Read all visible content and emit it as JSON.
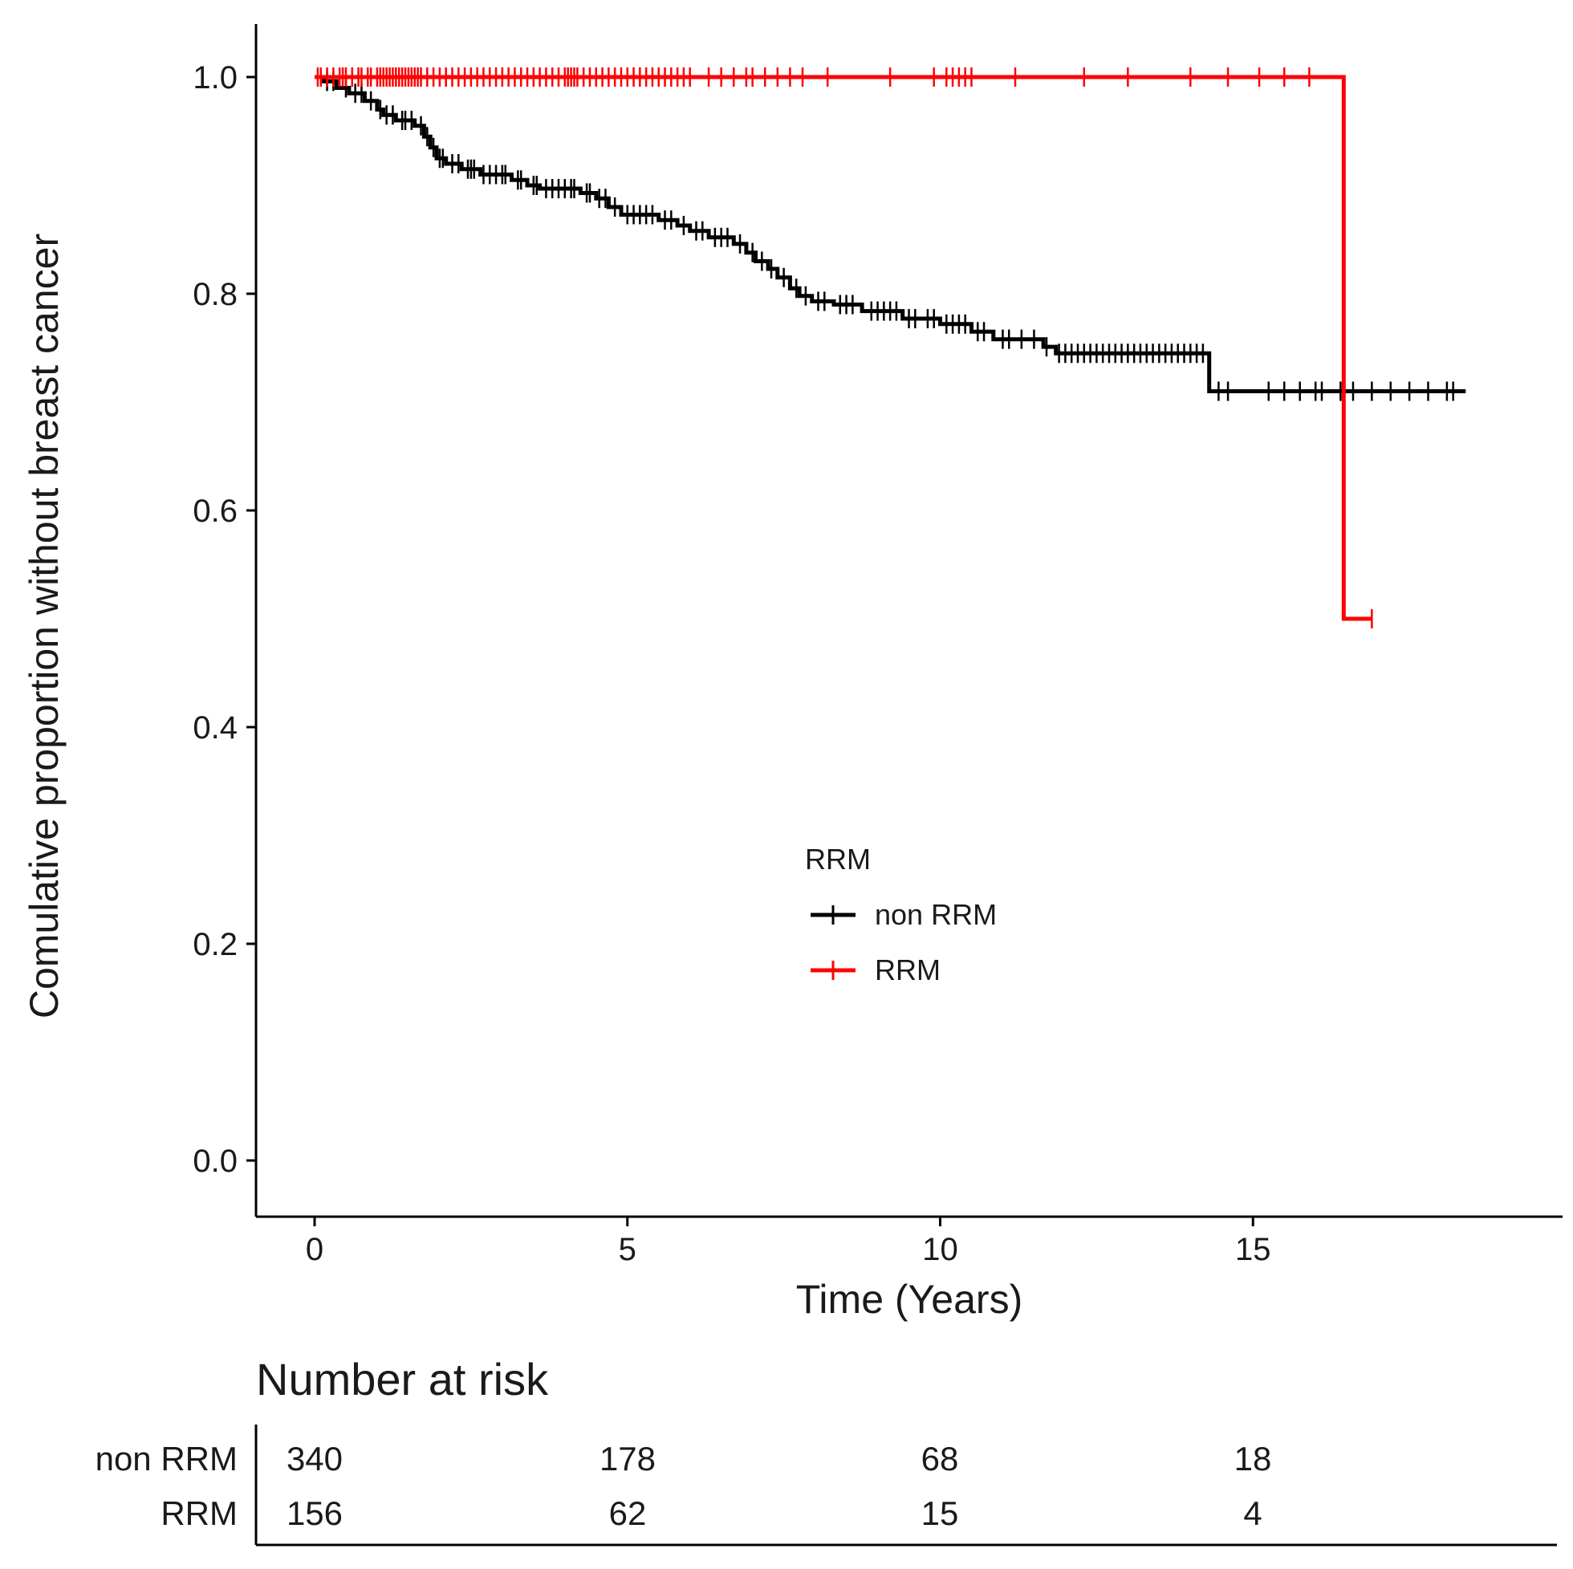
{
  "chart_data": {
    "type": "line",
    "subtype": "kaplan-meier-step",
    "xlabel": "Time (Years)",
    "ylabel": "Comulative proportion without breast cancer",
    "xlim": [
      -0.9,
      19.9
    ],
    "ylim": [
      -0.05,
      1.05
    ],
    "x_ticks": [
      0,
      5,
      10,
      15
    ],
    "y_ticks": [
      "0.0",
      "0.2",
      "0.4",
      "0.6",
      "0.8",
      "1.0"
    ],
    "legend": {
      "title": "RRM",
      "position": "center",
      "entries": [
        {
          "label": "non RRM",
          "color": "#000000"
        },
        {
          "label": "RRM",
          "color": "#ff0000"
        }
      ]
    },
    "series": [
      {
        "name": "non RRM",
        "color": "#000000",
        "steps": [
          [
            0,
            1.0
          ],
          [
            0.15,
            0.996
          ],
          [
            0.35,
            0.99
          ],
          [
            0.55,
            0.985
          ],
          [
            0.8,
            0.978
          ],
          [
            1.0,
            0.97
          ],
          [
            1.1,
            0.965
          ],
          [
            1.3,
            0.96
          ],
          [
            1.6,
            0.955
          ],
          [
            1.75,
            0.945
          ],
          [
            1.85,
            0.935
          ],
          [
            1.95,
            0.925
          ],
          [
            2.1,
            0.92
          ],
          [
            2.35,
            0.915
          ],
          [
            2.65,
            0.91
          ],
          [
            3.15,
            0.905
          ],
          [
            3.4,
            0.9
          ],
          [
            3.6,
            0.897
          ],
          [
            4.25,
            0.893
          ],
          [
            4.5,
            0.888
          ],
          [
            4.7,
            0.88
          ],
          [
            4.9,
            0.873
          ],
          [
            5.5,
            0.868
          ],
          [
            5.8,
            0.863
          ],
          [
            6.0,
            0.858
          ],
          [
            6.3,
            0.852
          ],
          [
            6.7,
            0.846
          ],
          [
            6.9,
            0.838
          ],
          [
            7.05,
            0.83
          ],
          [
            7.25,
            0.823
          ],
          [
            7.4,
            0.815
          ],
          [
            7.6,
            0.805
          ],
          [
            7.75,
            0.798
          ],
          [
            7.95,
            0.793
          ],
          [
            8.3,
            0.79
          ],
          [
            8.75,
            0.784
          ],
          [
            9.4,
            0.777
          ],
          [
            10.0,
            0.772
          ],
          [
            10.5,
            0.765
          ],
          [
            10.85,
            0.758
          ],
          [
            11.65,
            0.751
          ],
          [
            11.85,
            0.745
          ],
          [
            14.3,
            0.71
          ],
          [
            18.4,
            0.71
          ]
        ],
        "censor_times": [
          0.2,
          0.3,
          0.5,
          0.65,
          0.75,
          0.9,
          1.05,
          1.15,
          1.25,
          1.4,
          1.45,
          1.55,
          1.7,
          1.8,
          1.9,
          2.0,
          2.05,
          2.2,
          2.3,
          2.45,
          2.5,
          2.55,
          2.7,
          2.8,
          2.9,
          3.0,
          3.05,
          3.25,
          3.3,
          3.5,
          3.55,
          3.7,
          3.8,
          3.9,
          4.0,
          4.1,
          4.15,
          4.35,
          4.4,
          4.55,
          4.65,
          4.8,
          5.0,
          5.1,
          5.2,
          5.3,
          5.4,
          5.6,
          5.7,
          5.9,
          6.1,
          6.2,
          6.4,
          6.5,
          6.6,
          6.8,
          7.0,
          7.15,
          7.3,
          7.5,
          7.7,
          7.85,
          8.05,
          8.15,
          8.4,
          8.5,
          8.6,
          8.9,
          9.0,
          9.1,
          9.2,
          9.3,
          9.5,
          9.6,
          9.8,
          9.9,
          10.1,
          10.2,
          10.3,
          10.4,
          10.6,
          10.7,
          11.0,
          11.1,
          11.3,
          11.5,
          11.7,
          11.9,
          12.0,
          12.1,
          12.2,
          12.3,
          12.4,
          12.5,
          12.6,
          12.7,
          12.8,
          12.9,
          13.0,
          13.1,
          13.2,
          13.3,
          13.4,
          13.5,
          13.6,
          13.7,
          13.8,
          13.9,
          14.0,
          14.1,
          14.2,
          14.45,
          14.6,
          15.25,
          15.5,
          15.75,
          16.0,
          16.1,
          16.4,
          16.6,
          16.9,
          17.2,
          17.5,
          17.8,
          18.1,
          18.2
        ]
      },
      {
        "name": "RRM",
        "color": "#ff0000",
        "steps": [
          [
            0,
            1.0
          ],
          [
            16.45,
            0.5
          ],
          [
            16.9,
            0.5
          ]
        ],
        "censor_times": [
          0.05,
          0.1,
          0.2,
          0.3,
          0.4,
          0.45,
          0.5,
          0.6,
          0.7,
          0.75,
          0.85,
          0.9,
          1.0,
          1.05,
          1.1,
          1.15,
          1.2,
          1.25,
          1.3,
          1.35,
          1.4,
          1.45,
          1.5,
          1.55,
          1.6,
          1.65,
          1.7,
          1.8,
          1.9,
          2.0,
          2.1,
          2.2,
          2.3,
          2.4,
          2.5,
          2.6,
          2.7,
          2.8,
          2.9,
          3.0,
          3.1,
          3.2,
          3.3,
          3.4,
          3.5,
          3.6,
          3.7,
          3.8,
          3.9,
          4.0,
          4.05,
          4.1,
          4.15,
          4.2,
          4.3,
          4.4,
          4.5,
          4.6,
          4.7,
          4.8,
          4.9,
          5.0,
          5.1,
          5.2,
          5.3,
          5.4,
          5.5,
          5.6,
          5.7,
          5.8,
          5.9,
          6.0,
          6.3,
          6.5,
          6.7,
          6.9,
          7.0,
          7.2,
          7.4,
          7.6,
          7.8,
          8.2,
          9.2,
          9.9,
          10.1,
          10.2,
          10.3,
          10.4,
          10.5,
          11.2,
          12.3,
          13.0,
          14.0,
          14.6,
          15.1,
          15.5,
          15.9,
          16.9
        ]
      }
    ]
  },
  "risk_table": {
    "title": "Number at risk",
    "times": [
      0,
      5,
      10,
      15
    ],
    "rows": [
      {
        "group": "non RRM",
        "values": [
          "340",
          "178",
          "68",
          "18"
        ]
      },
      {
        "group": "RRM",
        "values": [
          "156",
          "62",
          "15",
          "4"
        ]
      }
    ]
  }
}
